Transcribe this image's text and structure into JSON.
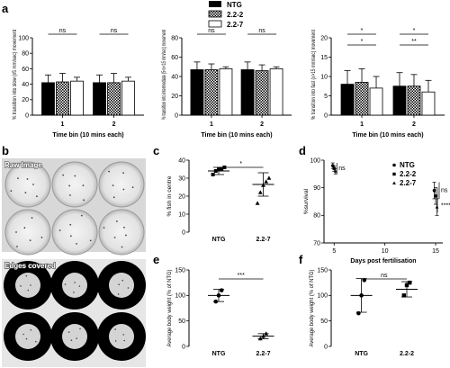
{
  "legend": {
    "items": [
      "NTG",
      "2.2-2",
      "2.2-7"
    ]
  },
  "panels": {
    "a": "a",
    "b": "b",
    "c": "c",
    "d": "d",
    "e": "e",
    "f": "f",
    "b_raw": "Raw Image",
    "b_edges": "Edges covered"
  },
  "chart_data": [
    {
      "id": "a1",
      "type": "bar",
      "ylabel": "% transition into slow (x5 mm/sec) movement",
      "xlabel": "Time bin (10 mins each)",
      "ylim": [
        0,
        100
      ],
      "ticks": [
        0,
        20,
        40,
        60,
        80,
        100
      ],
      "categories": [
        "1",
        "2"
      ],
      "series": [
        {
          "name": "NTG",
          "values": [
            42,
            42
          ],
          "err": [
            10,
            10
          ]
        },
        {
          "name": "2.2-2",
          "values": [
            43,
            42
          ],
          "err": [
            11,
            12
          ]
        },
        {
          "name": "2.2-7",
          "values": [
            44,
            44
          ],
          "err": [
            5,
            5
          ]
        }
      ],
      "sig": [
        {
          "cat": 0,
          "from": 0,
          "to": 2,
          "label": "ns"
        },
        {
          "cat": 1,
          "from": 0,
          "to": 2,
          "label": "ns"
        }
      ]
    },
    {
      "id": "a2",
      "type": "bar",
      "ylabel": "% transition into intermediate (5<x<15 mm/sec) movement",
      "xlabel": "Time bin (10 mins each)",
      "ylim": [
        0,
        80
      ],
      "ticks": [
        0,
        20,
        40,
        60,
        80
      ],
      "categories": [
        "1",
        "2"
      ],
      "series": [
        {
          "name": "NTG",
          "values": [
            47,
            47
          ],
          "err": [
            8,
            8
          ]
        },
        {
          "name": "2.2-2",
          "values": [
            47,
            46
          ],
          "err": [
            6,
            6
          ]
        },
        {
          "name": "2.2-7",
          "values": [
            48,
            48
          ],
          "err": [
            2,
            2
          ]
        }
      ],
      "sig": [
        {
          "cat": 0,
          "from": 0,
          "to": 2,
          "label": "ns"
        },
        {
          "cat": 1,
          "from": 0,
          "to": 2,
          "label": "ns"
        }
      ]
    },
    {
      "id": "a3",
      "type": "bar",
      "ylabel": "% transition into fast (x>15 mm/sec) movement",
      "xlabel": "Time bin (10 mins each)",
      "ylim": [
        0,
        20
      ],
      "ticks": [
        0,
        5,
        10,
        15,
        20
      ],
      "categories": [
        "1",
        "2"
      ],
      "series": [
        {
          "name": "NTG",
          "values": [
            8,
            7.5
          ],
          "err": [
            3.5,
            3.5
          ]
        },
        {
          "name": "2.2-2",
          "values": [
            8.5,
            7.5
          ],
          "err": [
            3.5,
            3
          ]
        },
        {
          "name": "2.2-7",
          "values": [
            7,
            6
          ],
          "err": [
            3,
            3
          ]
        }
      ],
      "sig": [
        {
          "cat": 0,
          "from": 0,
          "to": 2,
          "label": "*",
          "level": 0
        },
        {
          "cat": 0,
          "from": 0,
          "to": 2,
          "label": "*",
          "level": 1
        },
        {
          "cat": 1,
          "from": 0,
          "to": 2,
          "label": "**",
          "level": 0
        },
        {
          "cat": 1,
          "from": 0,
          "to": 2,
          "label": "*",
          "level": 1
        }
      ]
    },
    {
      "id": "c",
      "type": "scatter",
      "ylabel": "% fish in centre",
      "xlabel": "",
      "ylim": [
        0,
        40
      ],
      "ticks": [
        0,
        10,
        20,
        30,
        40
      ],
      "categories": [
        "NTG",
        "2.2-7"
      ],
      "groups": [
        {
          "name": "NTG",
          "points": [
            32,
            34,
            35,
            35,
            36
          ],
          "mean": 34,
          "sd": 2
        },
        {
          "name": "2.2-7",
          "points": [
            16,
            22,
            26,
            28,
            30
          ],
          "mean": 26.5,
          "sd": 6.5
        }
      ],
      "sig": [
        {
          "from": 0,
          "to": 1,
          "label": "*"
        }
      ]
    },
    {
      "id": "d",
      "type": "scatter",
      "ylabel": "%survival",
      "xlabel": "Days post fertilisation",
      "xlim": [
        4,
        15
      ],
      "xticks": [
        5,
        10,
        15
      ],
      "ylim": [
        70,
        100
      ],
      "ticks": [
        70,
        80,
        90,
        100
      ],
      "series": [
        {
          "name": "NTG",
          "x": [
            5,
            15
          ],
          "y": [
            98,
            89
          ],
          "err": [
            1,
            3
          ]
        },
        {
          "name": "2.2-2",
          "x": [
            5,
            15
          ],
          "y": [
            97,
            87
          ],
          "err": [
            1,
            3
          ]
        },
        {
          "name": "2.2-7",
          "x": [
            5,
            15
          ],
          "y": [
            96,
            83
          ],
          "err": [
            1,
            3
          ]
        }
      ],
      "annotations": [
        "ns",
        "ns",
        "****"
      ]
    },
    {
      "id": "e",
      "type": "scatter",
      "ylabel": "Average body weight (% of NTG)",
      "xlabel": "",
      "ylim": [
        0,
        150
      ],
      "ticks": [
        0,
        50,
        100,
        150
      ],
      "categories": [
        "NTG",
        "2.2-7"
      ],
      "groups": [
        {
          "name": "NTG",
          "points": [
            88,
            100,
            110
          ],
          "mean": 100,
          "sd": 12
        },
        {
          "name": "2.2-7",
          "points": [
            15,
            20,
            25
          ],
          "mean": 20,
          "sd": 5
        }
      ],
      "sig": [
        {
          "from": 0,
          "to": 1,
          "label": "***"
        }
      ]
    },
    {
      "id": "f",
      "type": "scatter",
      "ylabel": "Average body weight (% of NTG)",
      "xlabel": "",
      "ylim": [
        0,
        150
      ],
      "ticks": [
        0,
        50,
        100,
        150
      ],
      "categories": [
        "NTG",
        "2.2-2"
      ],
      "groups": [
        {
          "name": "NTG",
          "points": [
            65,
            100,
            130
          ],
          "mean": 100,
          "sd": 33
        },
        {
          "name": "2.2-2",
          "points": [
            100,
            120,
            125
          ],
          "mean": 112,
          "sd": 15
        }
      ],
      "sig": [
        {
          "from": 0,
          "to": 1,
          "label": "ns"
        }
      ]
    }
  ]
}
